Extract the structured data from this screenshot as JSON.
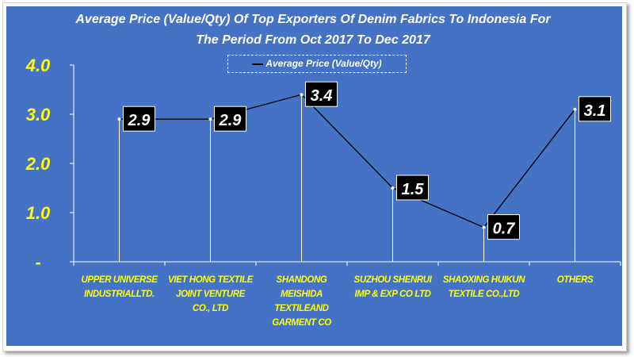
{
  "chart_data": {
    "type": "line",
    "title": "Average Price (Value/Qty) Of Top Exporters Of Denim Fabrics To Indonesia For The Period From Oct 2017 To Dec 2017",
    "title_lines": [
      "Average Price (Value/Qty) Of Top Exporters Of Denim Fabrics To Indonesia For",
      "The Period From Oct 2017 To Dec 2017"
    ],
    "categories": [
      "UPPER UNIVERSE INDUSTRIALLTD.",
      "VIET HONG TEXTILE JOINT VENTURE CO., LTD",
      "SHANDONG MEISHIDA TEXTILEAND GARMENT CO",
      "SUZHOU SHENRUI IMP & EXP CO LTD",
      "SHAOXING HUIKUN TEXTILE CO.,LTD",
      "OTHERS"
    ],
    "series": [
      {
        "name": "Average Price (Value/Qty)",
        "values": [
          2.9,
          2.9,
          3.4,
          1.5,
          0.7,
          3.1
        ]
      }
    ],
    "data_labels": [
      "2.9",
      "2.9",
      "3.4",
      "1.5",
      "0.7",
      "3.1"
    ],
    "yticks": [
      "-",
      "1.0",
      "2.0",
      "3.0",
      "4.0"
    ],
    "ylim": [
      0,
      4
    ],
    "xlabel": "",
    "ylabel": "",
    "legend": "top-center",
    "grid": false,
    "colors": {
      "background": "#4472c4",
      "tick_labels": "#ffff00",
      "line": "#000000",
      "label_box": "#000000",
      "label_text": "#ffffff"
    }
  }
}
